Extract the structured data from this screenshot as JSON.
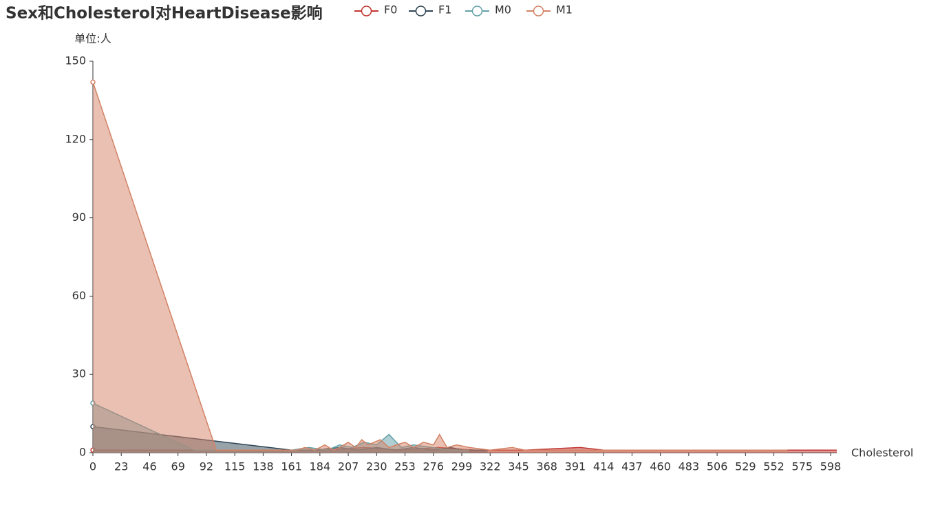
{
  "chart_data": {
    "type": "line",
    "area": true,
    "title": "Sex和Cholesterol对HeartDisease影响",
    "y_axis_label": "单位:人",
    "x_axis_label": "Cholesterol",
    "xlim": [
      0,
      603
    ],
    "xticks": [
      0,
      23,
      46,
      69,
      92,
      115,
      138,
      161,
      184,
      207,
      230,
      253,
      276,
      299,
      322,
      345,
      368,
      391,
      414,
      437,
      460,
      483,
      506,
      529,
      552,
      575,
      598
    ],
    "ylim": [
      0,
      150
    ],
    "yticks": [
      0,
      30,
      60,
      90,
      120,
      150
    ],
    "series": [
      {
        "name": "F0",
        "color": "#c23531",
        "x": [
          0,
          160,
          190,
          220,
          250,
          280,
          310,
          350,
          395,
          414,
          603
        ],
        "values": [
          1,
          1,
          1,
          2,
          1,
          2,
          1,
          1,
          2,
          1,
          1
        ]
      },
      {
        "name": "F1",
        "color": "#2f4554",
        "x": [
          0,
          161,
          180,
          200,
          215,
          230,
          245,
          260,
          275,
          290,
          300,
          320
        ],
        "values": [
          10,
          1,
          1,
          2,
          1,
          2,
          1,
          2,
          1,
          2,
          1,
          1
        ]
      },
      {
        "name": "M0",
        "color": "#61a0a8",
        "x": [
          0,
          82,
          161,
          175,
          190,
          200,
          210,
          220,
          230,
          240,
          250,
          260,
          275,
          290,
          305
        ],
        "values": [
          19,
          1,
          1,
          2,
          1,
          3,
          2,
          4,
          3,
          7,
          2,
          3,
          2,
          1,
          1
        ]
      },
      {
        "name": "M1",
        "color": "#d48265",
        "x": [
          0,
          100,
          165,
          172,
          180,
          188,
          195,
          200,
          207,
          213,
          218,
          223,
          228,
          233,
          240,
          246,
          253,
          260,
          268,
          276,
          281,
          287,
          295,
          305,
          322,
          340,
          350,
          529,
          563
        ],
        "values": [
          142,
          1,
          1,
          2,
          1,
          3,
          1,
          2,
          4,
          2,
          5,
          3,
          4,
          5,
          2,
          3,
          4,
          2,
          4,
          3,
          7,
          2,
          3,
          2,
          1,
          2,
          1,
          1,
          1
        ]
      }
    ]
  }
}
